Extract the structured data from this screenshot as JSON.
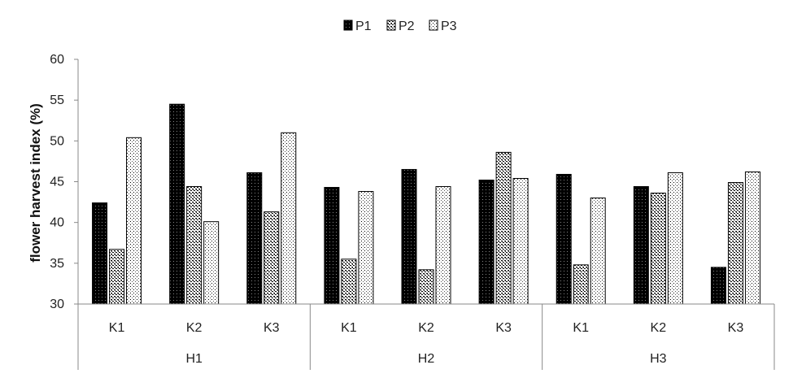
{
  "chart_data": {
    "type": "bar",
    "title": "",
    "xlabel": "",
    "ylabel": "flower harvest index (%)",
    "ylim": [
      30,
      60
    ],
    "yticks": [
      30,
      35,
      40,
      45,
      50,
      55,
      60
    ],
    "grid": false,
    "legend_position": "top-center",
    "groups": [
      {
        "label": "H1",
        "categories": [
          "K1",
          "K2",
          "K3"
        ]
      },
      {
        "label": "H2",
        "categories": [
          "K1",
          "K2",
          "K3"
        ]
      },
      {
        "label": "H3",
        "categories": [
          "K1",
          "K2",
          "K3"
        ]
      }
    ],
    "series": [
      {
        "name": "P1",
        "pattern": "solid-black",
        "color": "#000000",
        "values": [
          42.4,
          54.5,
          46.1,
          44.3,
          46.5,
          45.2,
          45.9,
          44.4,
          34.5
        ]
      },
      {
        "name": "P2",
        "pattern": "dense-dots",
        "color": "#000000",
        "values": [
          36.7,
          44.4,
          41.3,
          35.5,
          34.2,
          48.6,
          34.8,
          43.6,
          44.9
        ]
      },
      {
        "name": "P3",
        "pattern": "sparse-dots",
        "color": "#000000",
        "values": [
          50.4,
          40.1,
          51.0,
          43.8,
          44.4,
          45.4,
          43.0,
          46.1,
          46.2
        ]
      }
    ]
  }
}
